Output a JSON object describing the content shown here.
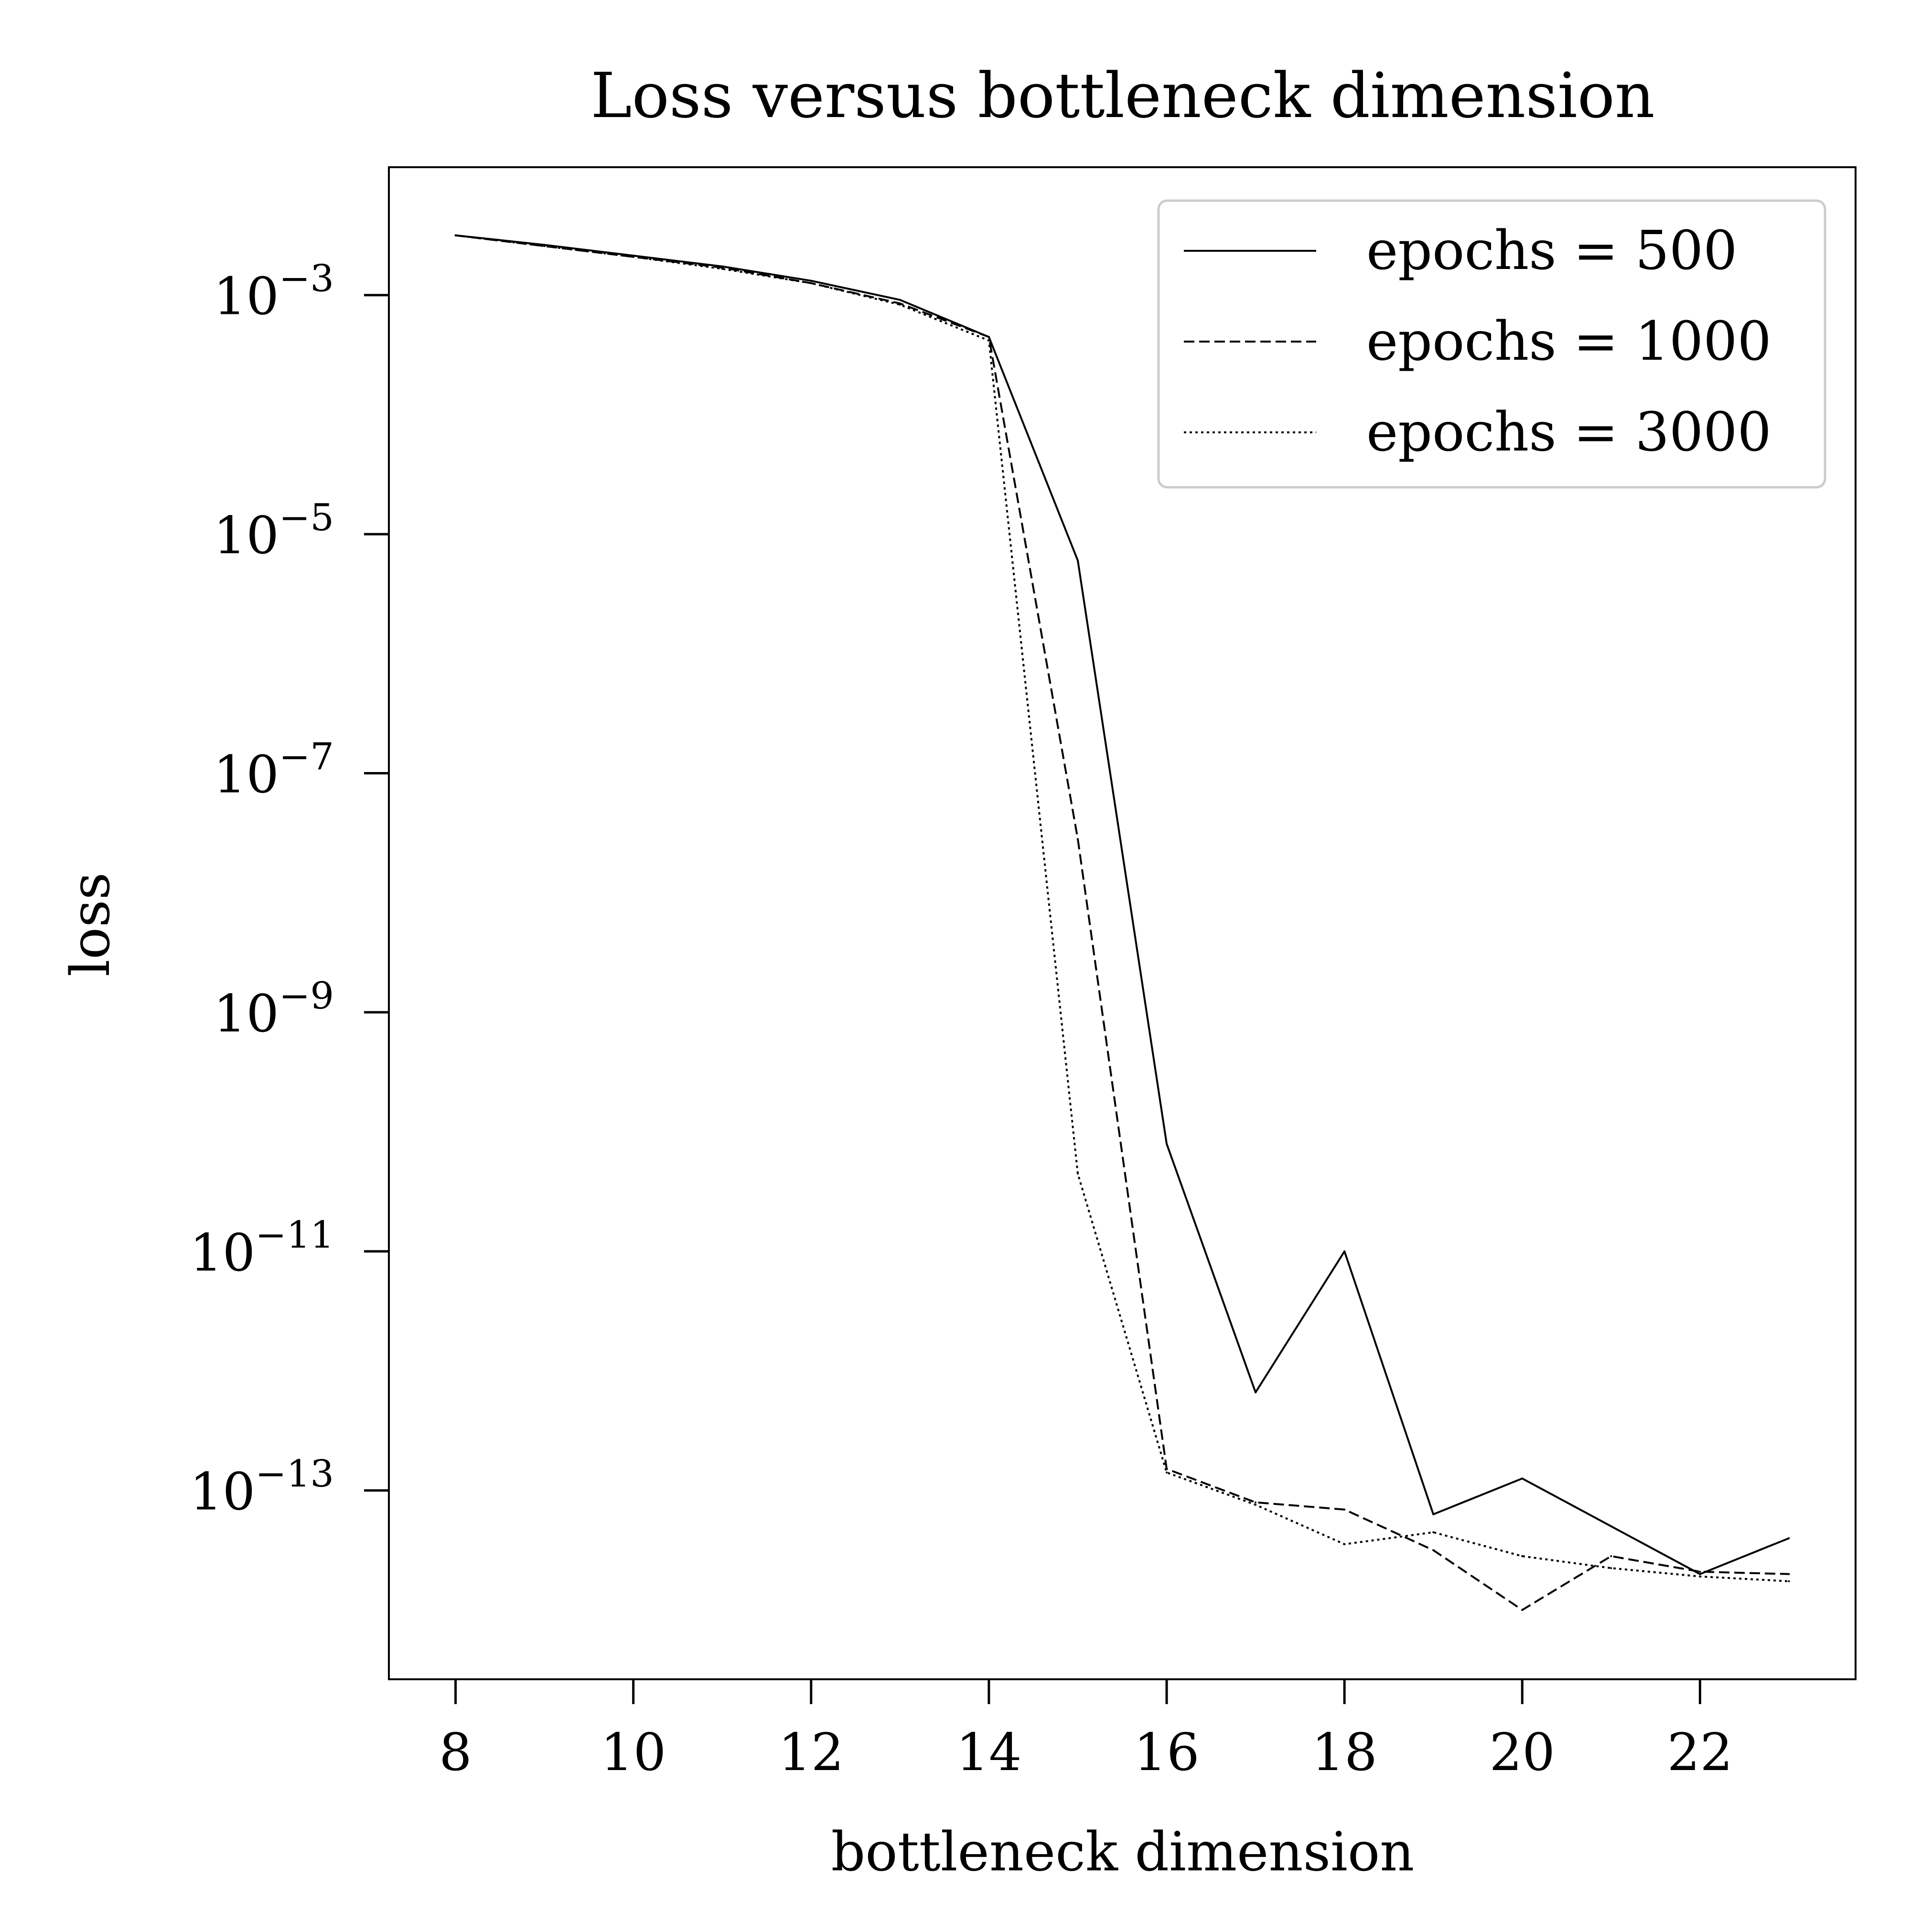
{
  "chart_data": {
    "type": "line",
    "title": "Loss versus bottleneck dimension",
    "xlabel": "bottleneck dimension",
    "ylabel": "loss",
    "x": [
      8,
      9,
      10,
      11,
      12,
      13,
      14,
      15,
      16,
      17,
      18,
      19,
      20,
      21,
      22,
      23
    ],
    "xlim": [
      7.25,
      23.75
    ],
    "xticks": [
      8,
      10,
      12,
      14,
      16,
      18,
      20,
      22
    ],
    "ylim": [
      -14.58,
      -1.93
    ],
    "yscale": "log",
    "yticks": [
      {
        "base": "10",
        "exp": "−3",
        "value": -3
      },
      {
        "base": "10",
        "exp": "−5",
        "value": -5
      },
      {
        "base": "10",
        "exp": "−7",
        "value": -7
      },
      {
        "base": "10",
        "exp": "−9",
        "value": -9
      },
      {
        "base": "10",
        "exp": "−11",
        "value": -11
      },
      {
        "base": "10",
        "exp": "−13",
        "value": -13
      }
    ],
    "y_encoding": "log10(loss)",
    "grid": false,
    "legend_position": "top-right",
    "series": [
      {
        "name": "epochs = 500",
        "style": "solid",
        "log10_values": [
          -2.5,
          -2.58,
          -2.67,
          -2.76,
          -2.88,
          -3.04,
          -3.35,
          -5.22,
          -10.1,
          -12.18,
          -11.0,
          -13.2,
          -12.9,
          -13.3,
          -13.7,
          -13.4
        ]
      },
      {
        "name": "epochs = 1000",
        "style": "dashed",
        "log10_values": [
          -2.5,
          -2.59,
          -2.68,
          -2.77,
          -2.9,
          -3.07,
          -3.35,
          -7.55,
          -12.82,
          -13.1,
          -13.16,
          -13.5,
          -14.0,
          -13.55,
          -13.68,
          -13.7
        ]
      },
      {
        "name": "epochs = 3000",
        "style": "dotted",
        "log10_values": [
          -2.5,
          -2.59,
          -2.68,
          -2.78,
          -2.9,
          -3.08,
          -3.38,
          -10.35,
          -12.85,
          -13.12,
          -13.45,
          -13.35,
          -13.55,
          -13.65,
          -13.72,
          -13.76
        ]
      }
    ],
    "colors": {
      "line": "#000000",
      "frame": "#000000",
      "legend_border": "#cccccc"
    }
  }
}
